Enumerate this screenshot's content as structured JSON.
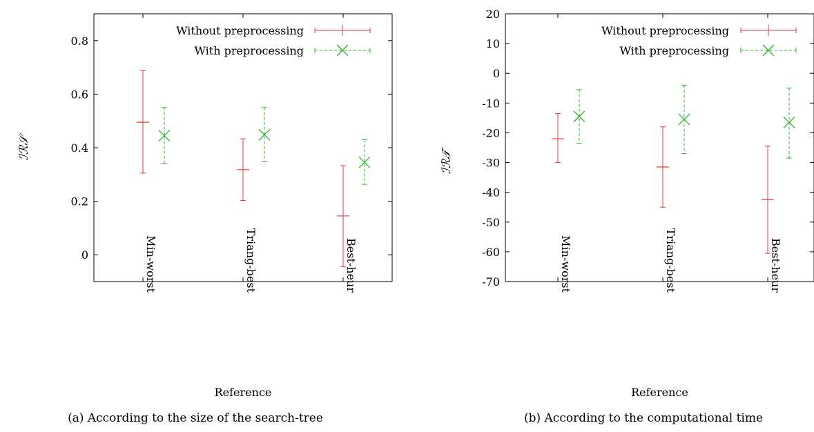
{
  "chart_data": [
    {
      "type": "errorbar",
      "caption": "(a) According to the size of the search-tree",
      "xlabel": "Reference",
      "ylabel": "ℐℛ𝒮",
      "categories": [
        "Min-worst",
        "Triang-best",
        "Best-heur"
      ],
      "ylim": [
        -0.1,
        0.9
      ],
      "yticks": [
        "0",
        "0.2",
        "0.4",
        "0.6",
        "0.8"
      ],
      "legend_position": "top-right",
      "series": [
        {
          "name": "Without preprocessing",
          "color": "#e8393a",
          "dashed": false,
          "marker": "plus",
          "points": [
            {
              "y": 0.495,
              "low": 0.305,
              "high": 0.688
            },
            {
              "y": 0.318,
              "low": 0.203,
              "high": 0.433
            },
            {
              "y": 0.145,
              "low": -0.045,
              "high": 0.333
            }
          ]
        },
        {
          "name": "With preprocessing",
          "color": "#33b233",
          "dashed": true,
          "marker": "x",
          "points": [
            {
              "y": 0.445,
              "low": 0.342,
              "high": 0.55
            },
            {
              "y": 0.448,
              "low": 0.347,
              "high": 0.55
            },
            {
              "y": 0.345,
              "low": 0.263,
              "high": 0.43
            }
          ]
        }
      ]
    },
    {
      "type": "errorbar",
      "caption": "(b) According to the computational time",
      "xlabel": "Reference",
      "ylabel": "ℐℛ𝒯",
      "categories": [
        "Min-worst",
        "Triang-best",
        "Best-heur"
      ],
      "ylim": [
        -70,
        20
      ],
      "yticks": [
        "20",
        "10",
        "0",
        "-10",
        "-20",
        "-30",
        "-40",
        "-50",
        "-60",
        "-70"
      ],
      "legend_position": "top-right",
      "series": [
        {
          "name": "Without preprocessing",
          "color": "#e8393a",
          "dashed": false,
          "marker": "plus",
          "points": [
            {
              "y": -22,
              "low": -30,
              "high": -13.5
            },
            {
              "y": -31.5,
              "low": -45,
              "high": -18
            },
            {
              "y": -42.5,
              "low": -60.5,
              "high": -24.5
            }
          ]
        },
        {
          "name": "With preprocessing",
          "color": "#33b233",
          "dashed": true,
          "marker": "x",
          "points": [
            {
              "y": -14.5,
              "low": -23.5,
              "high": -5.5
            },
            {
              "y": -15.5,
              "low": -27,
              "high": -4
            },
            {
              "y": -16.5,
              "low": -28.5,
              "high": -5
            }
          ]
        }
      ]
    }
  ]
}
